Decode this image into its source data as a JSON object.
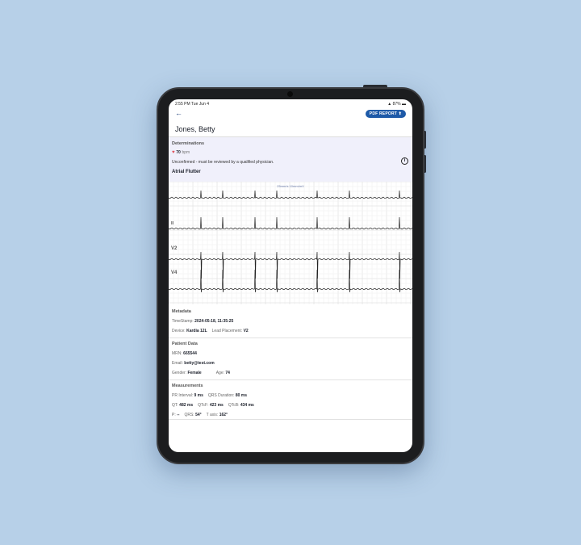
{
  "status_bar": {
    "time": "2:55 PM  Tue Jun 4",
    "battery": "87%"
  },
  "header": {
    "back_icon": "arrow-left-icon",
    "pdf_button": "PDF REPORT",
    "patient_name": "Jones, Betty"
  },
  "determinations": {
    "title": "Determinations",
    "heart_rate": "70",
    "hr_unit": "bpm",
    "notice": "Unconfirmed - must be reviewed by a qualified physician.",
    "diagnosis": "Atrial Flutter",
    "info_icon": "info-icon"
  },
  "ecg": {
    "scale_label": "25mm/s 10mm/mV",
    "leads": [
      "I",
      "II",
      "V2",
      "V4"
    ]
  },
  "metadata": {
    "title": "Metadata",
    "timestamp_label": "TimeStamp:",
    "timestamp": "2024-05-18, 11:35:25",
    "device_label": "Device:",
    "device": "Kardia 12L",
    "lead_label": "Lead Placement:",
    "lead": "V2"
  },
  "patient": {
    "title": "Patient Data",
    "mrn_label": "MRN:",
    "mrn": "665544",
    "email_label": "Email:",
    "email": "betty@test.com",
    "gender_label": "Gender:",
    "gender": "Female",
    "age_label": "Age:",
    "age": "74"
  },
  "measurements": {
    "title": "Measurements",
    "pr_label": "PR Interval:",
    "pr": "9 ms",
    "qrs_label": "QRS Duration:",
    "qrs": "80 ms",
    "qt_label": "QT:",
    "qt": "482 ms",
    "qtcf_label": "QTcF:",
    "qtcf": "423 ms",
    "qtcb_label": "QTcB:",
    "qtcb": "434 ms",
    "p_label": "P:",
    "p": "--",
    "qrs_axis_label": "QRS:",
    "qrs_axis": "54°",
    "t_label": "T axis:",
    "t_axis": "162°"
  }
}
